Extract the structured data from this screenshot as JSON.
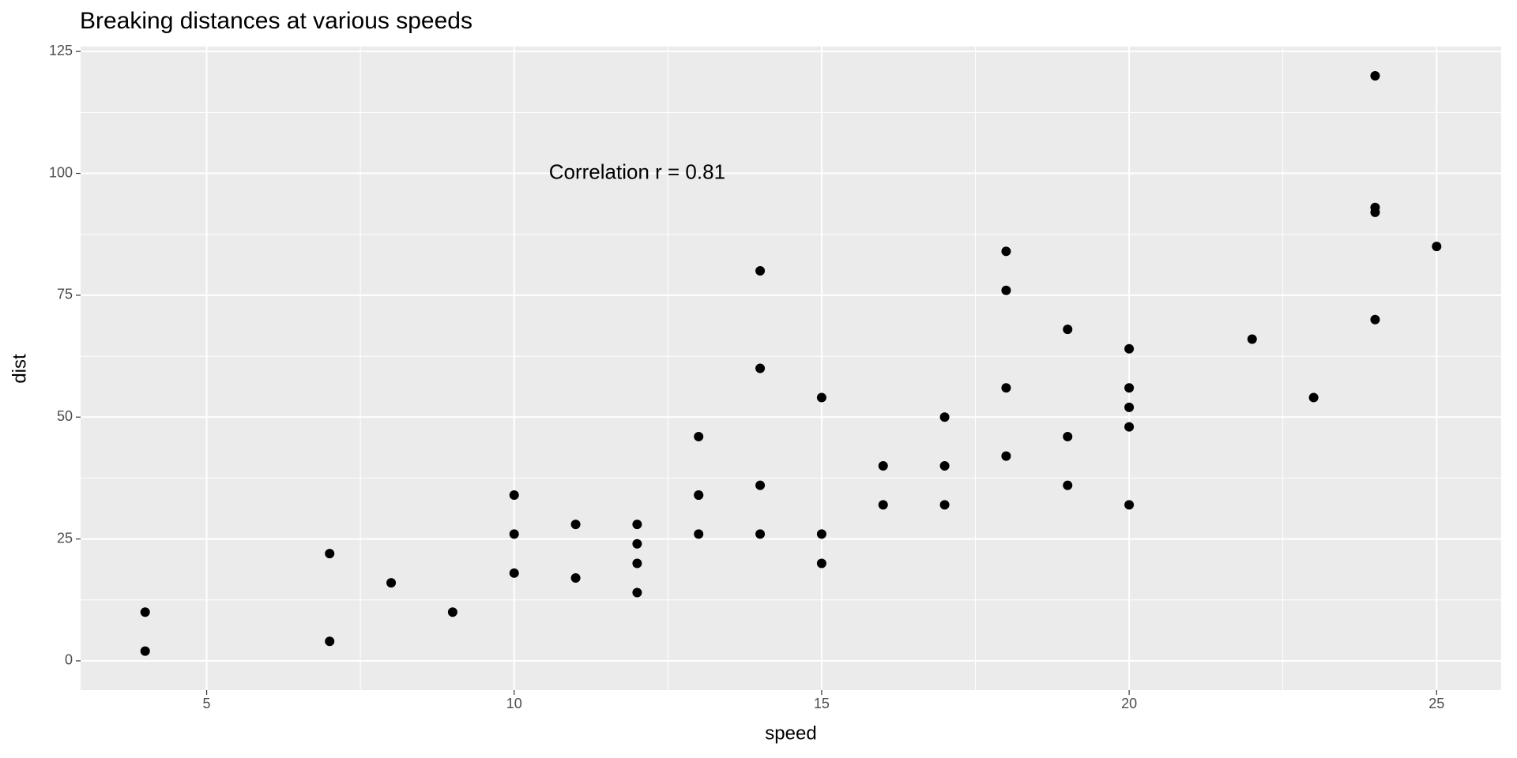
{
  "chart_data": {
    "type": "scatter",
    "title": "Breaking distances at various speeds",
    "x_label": "speed",
    "y_label": "dist",
    "annotation": {
      "text": "Correlation r = 0.81",
      "x": 12,
      "y": 100
    },
    "color": "#000000",
    "x": [
      4,
      4,
      7,
      7,
      8,
      9,
      10,
      10,
      10,
      11,
      11,
      12,
      12,
      12,
      12,
      13,
      13,
      13,
      13,
      14,
      14,
      14,
      14,
      15,
      15,
      15,
      16,
      16,
      17,
      17,
      17,
      18,
      18,
      18,
      18,
      19,
      19,
      19,
      20,
      20,
      20,
      20,
      20,
      22,
      23,
      24,
      24,
      24,
      24,
      25
    ],
    "y": [
      2,
      10,
      4,
      22,
      16,
      10,
      18,
      26,
      34,
      17,
      28,
      14,
      20,
      24,
      28,
      26,
      34,
      34,
      46,
      26,
      36,
      60,
      80,
      20,
      26,
      54,
      32,
      40,
      32,
      40,
      50,
      42,
      56,
      76,
      84,
      36,
      46,
      68,
      32,
      48,
      52,
      56,
      64,
      66,
      54,
      70,
      92,
      93,
      120,
      85
    ],
    "xlim": [
      2.95,
      26.05
    ],
    "ylim": [
      -6,
      126
    ],
    "xticks": [
      5,
      10,
      15,
      20,
      25
    ],
    "yticks": [
      0,
      25,
      50,
      75,
      100,
      125
    ],
    "grid": true
  }
}
